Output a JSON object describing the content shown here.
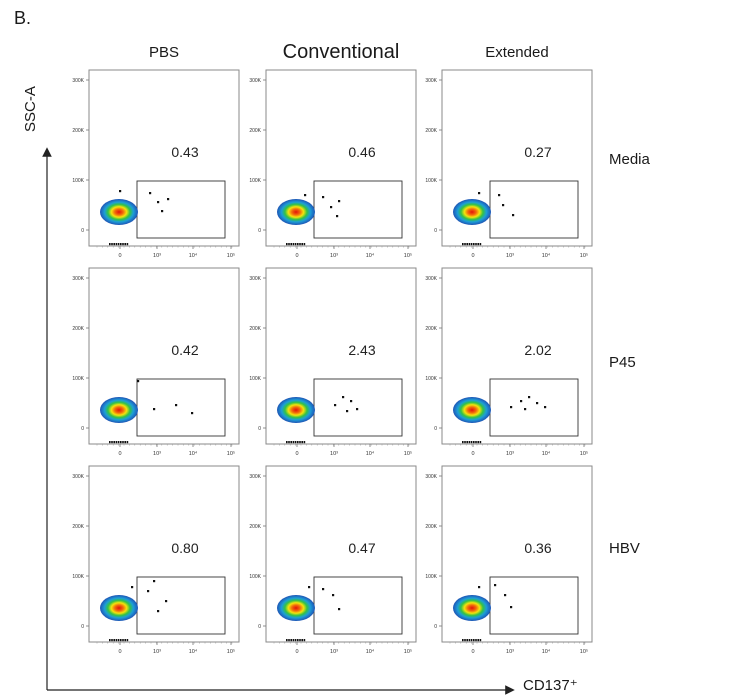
{
  "figure": {
    "panel_label": "B.",
    "columns": [
      "PBS",
      "Conventional",
      "Extended"
    ],
    "rows": [
      "Media",
      "P45",
      "HBV"
    ],
    "y_axis_label": "SSC-A",
    "x_axis_label": "CD137⁺"
  },
  "chart_data": {
    "type": "scatter",
    "subtype": "flow-cytometry-density-grid",
    "xlabel": "CD137⁺",
    "ylabel": "SSC-A",
    "x_scale": "biexponential",
    "x_ticks": [
      "0",
      "10³",
      "10⁴",
      "10⁵"
    ],
    "y_ticks": [
      "0",
      "100K",
      "200K",
      "300K"
    ],
    "ylim": [
      0,
      300000
    ],
    "grid": false,
    "gate_percentages": [
      {
        "row": "Media",
        "column": "PBS",
        "value": "0.43"
      },
      {
        "row": "Media",
        "column": "Conventional",
        "value": "0.46"
      },
      {
        "row": "Media",
        "column": "Extended",
        "value": "0.27"
      },
      {
        "row": "P45",
        "column": "PBS",
        "value": "0.42"
      },
      {
        "row": "P45",
        "column": "Conventional",
        "value": "2.43"
      },
      {
        "row": "P45",
        "column": "Extended",
        "value": "2.02"
      },
      {
        "row": "HBV",
        "column": "PBS",
        "value": "0.80"
      },
      {
        "row": "HBV",
        "column": "Conventional",
        "value": "0.47"
      },
      {
        "row": "HBV",
        "column": "Extended",
        "value": "0.36"
      }
    ]
  }
}
